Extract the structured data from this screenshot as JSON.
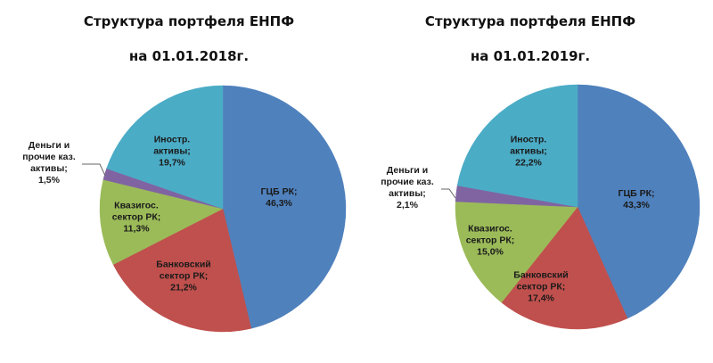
{
  "chart_data": [
    {
      "type": "pie",
      "title": "Структура портфеля ЕНПФ",
      "subtitle": "на 01.01.2018г.",
      "categories": [
        "ГЦБ РК",
        "Банковский сектор РК",
        "Квазигос. сектор РК",
        "Деньги и прочие каз. активы",
        "Иностр. активы"
      ],
      "values": [
        46.3,
        21.2,
        11.3,
        1.5,
        19.7
      ],
      "labels": [
        {
          "l1": "ГЦБ РК;",
          "l2": "",
          "pct": "46,3%"
        },
        {
          "l1": "Банковский",
          "l2": "сектор РК;",
          "pct": "21,2%"
        },
        {
          "l1": "Квазигос.",
          "l2": "сектор РК;",
          "pct": "11,3%"
        },
        {
          "l1": "Деньги и",
          "l2": "прочие каз.",
          "l3": "активы;",
          "pct": "1,5%"
        },
        {
          "l1": "Иностр.",
          "l2": "активы;",
          "pct": "19,7%"
        }
      ],
      "colors": [
        "#4f81bd",
        "#c0504d",
        "#9bbb59",
        "#8064a2",
        "#4bacc6"
      ],
      "start_angle_deg": 0,
      "direction": "clockwise",
      "legend": "none (data labels on slices)"
    },
    {
      "type": "pie",
      "title": "Структура портфеля ЕНПФ",
      "subtitle": "на 01.01.2019г.",
      "categories": [
        "ГЦБ РК",
        "Банковский сектор РК",
        "Квазигос. сектор РК",
        "Деньги и прочие каз. активы",
        "Иностр. активы"
      ],
      "values": [
        43.3,
        17.4,
        15.0,
        2.1,
        22.2
      ],
      "labels": [
        {
          "l1": "ГЦБ РК;",
          "l2": "",
          "pct": "43,3%"
        },
        {
          "l1": "Банковский",
          "l2": "сектор РК;",
          "pct": "17,4%"
        },
        {
          "l1": "Квазигос.",
          "l2": "сектор РК;",
          "pct": "15,0%"
        },
        {
          "l1": "Деньги и",
          "l2": "прочие каз.",
          "l3": "активы;",
          "pct": "2,1%"
        },
        {
          "l1": "Иностр.",
          "l2": "активы;",
          "pct": "22,2%"
        }
      ],
      "colors": [
        "#4f81bd",
        "#c0504d",
        "#9bbb59",
        "#8064a2",
        "#4bacc6"
      ],
      "start_angle_deg": 0,
      "direction": "clockwise",
      "legend": "none (data labels on slices)"
    }
  ],
  "charts": {
    "left": {
      "title": "Структура портфеля ЕНПФ",
      "subtitle": "на 01.01.2018г."
    },
    "right": {
      "title": "Структура портфеля ЕНПФ",
      "subtitle": "на 01.01.2019г."
    }
  }
}
